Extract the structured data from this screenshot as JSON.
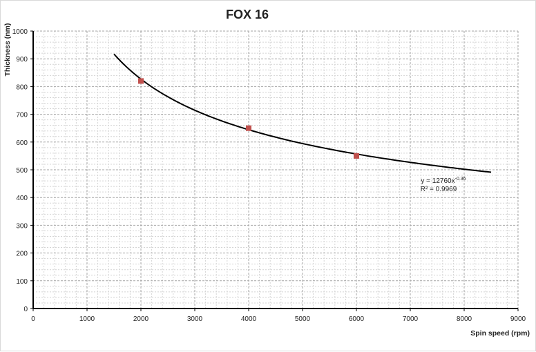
{
  "chart_data": {
    "type": "scatter",
    "title": "FOX 16",
    "xlabel": "Spin speed (rpm)",
    "ylabel": "Thickness (nm)",
    "xlim": [
      0,
      9000
    ],
    "ylim": [
      0,
      1000
    ],
    "xticks": [
      0,
      1000,
      2000,
      3000,
      4000,
      5000,
      6000,
      7000,
      8000,
      9000
    ],
    "yticks": [
      0,
      100,
      200,
      300,
      400,
      500,
      600,
      700,
      800,
      900,
      1000
    ],
    "grid": true,
    "points": [
      {
        "x": 2000,
        "y": 820
      },
      {
        "x": 4000,
        "y": 650
      },
      {
        "x": 6000,
        "y": 550
      }
    ],
    "marker_color": "#c0504d",
    "trendline": {
      "type": "power",
      "a": 12760,
      "b": -0.36,
      "x_range": [
        1500,
        8500
      ],
      "color": "#000000",
      "equation_base": "y = 12760x",
      "equation_exponent": "-0.36",
      "r_squared": "R² = 0.9969"
    }
  }
}
